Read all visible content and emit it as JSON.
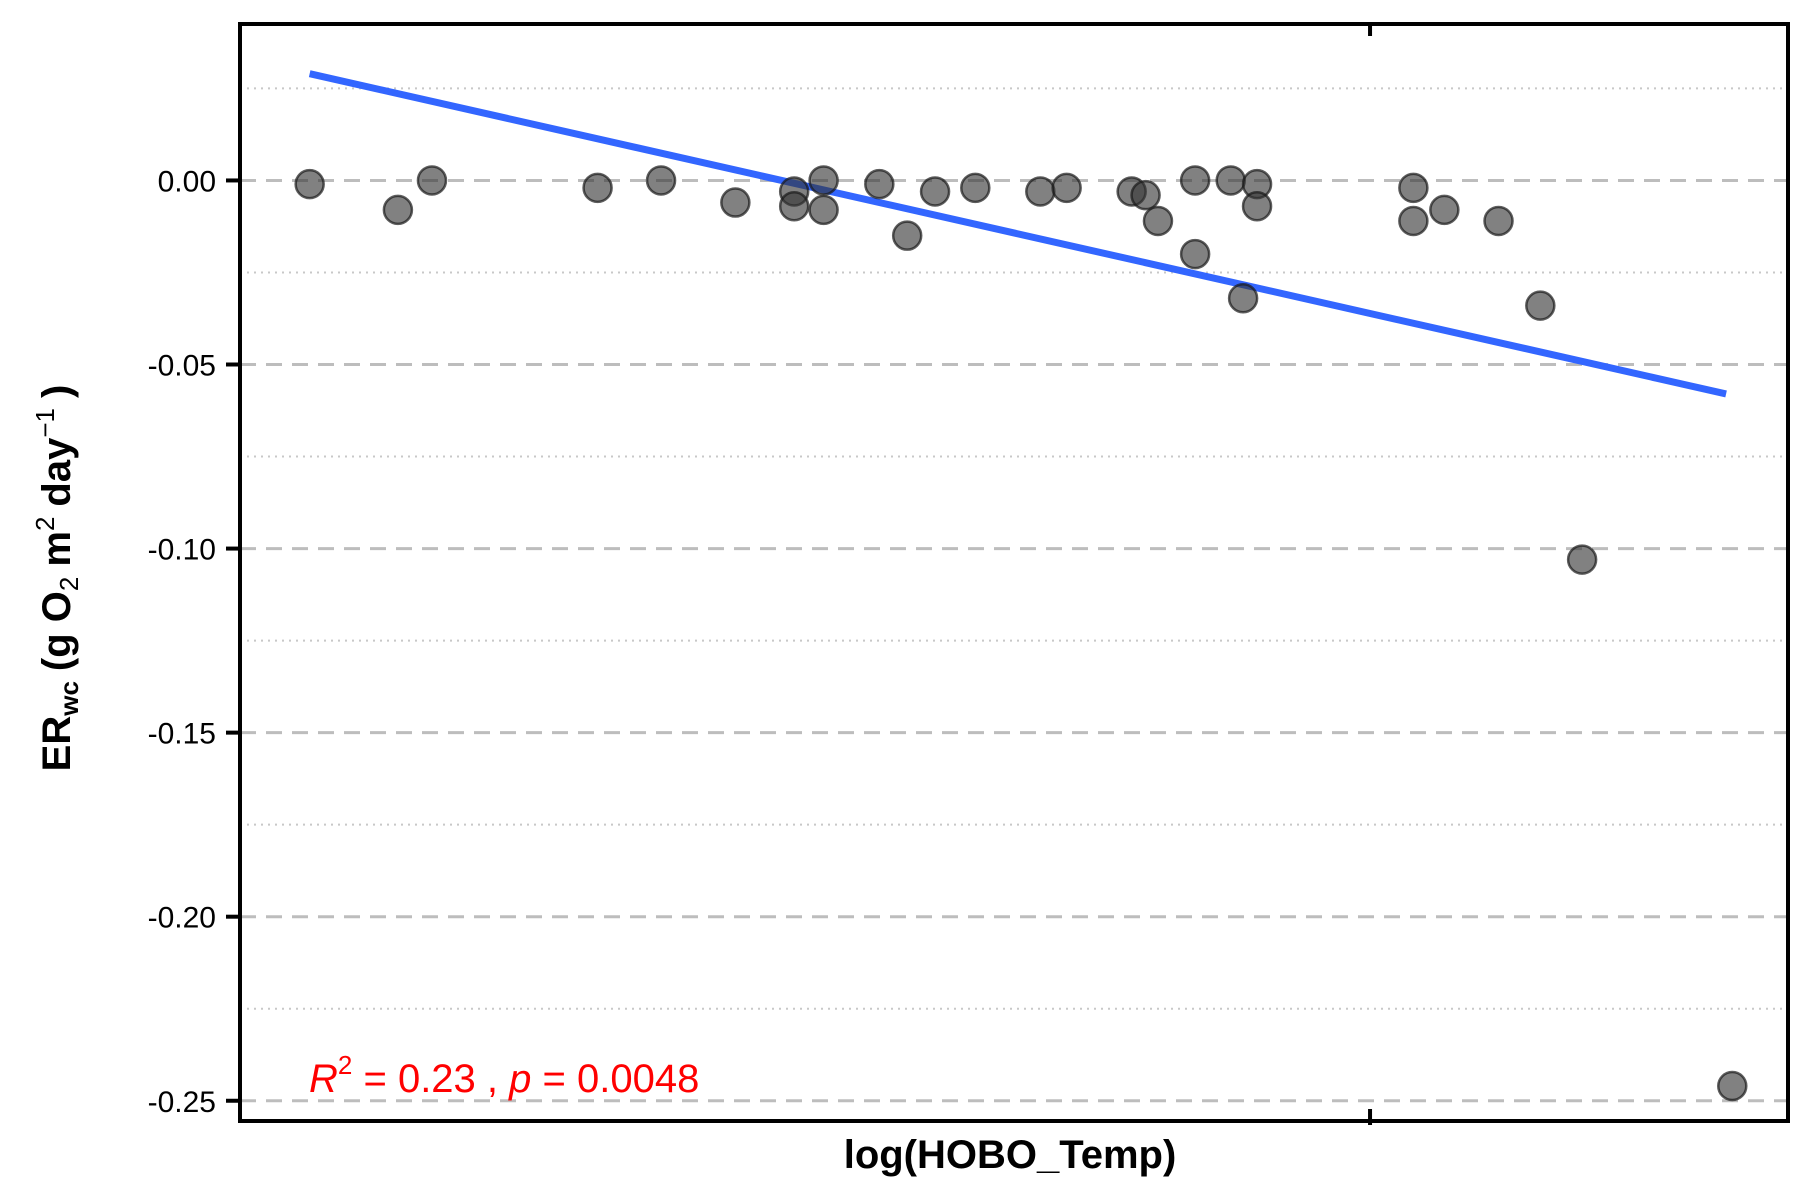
{
  "chart_data": {
    "type": "scatter",
    "xlabel": "log(HOBO_Temp)",
    "ylabel": {
      "main": "ER",
      "sub": "wc",
      "paren_open": "(g O",
      "o2_sub": "2",
      "m": "m",
      "m_sup": "2",
      "day": "day",
      "day_sup": "−1",
      "paren_close": ")"
    },
    "ylim": [
      -0.2555,
      0.0425
    ],
    "xlim": [
      0,
      1
    ],
    "y_ticks": [
      0.0,
      -0.05,
      -0.1,
      -0.15,
      -0.2,
      -0.25
    ],
    "y_tick_labels": [
      "0.00",
      "-0.05",
      "-0.10",
      "-0.15",
      "-0.20",
      "-0.25"
    ],
    "y_minor_grid": [
      0.025,
      -0.025,
      -0.075,
      -0.125,
      -0.175,
      -0.225
    ],
    "x_ticks": [
      0.73
    ],
    "grid": "horizontal dashed major, dotted minor",
    "points": [
      {
        "x": 0.045,
        "y": -0.001
      },
      {
        "x": 0.102,
        "y": -0.008
      },
      {
        "x": 0.124,
        "y": 0.0
      },
      {
        "x": 0.231,
        "y": -0.002
      },
      {
        "x": 0.272,
        "y": 0.0
      },
      {
        "x": 0.32,
        "y": -0.006
      },
      {
        "x": 0.358,
        "y": -0.003
      },
      {
        "x": 0.358,
        "y": -0.007
      },
      {
        "x": 0.377,
        "y": 0.0
      },
      {
        "x": 0.377,
        "y": -0.008
      },
      {
        "x": 0.413,
        "y": -0.001
      },
      {
        "x": 0.431,
        "y": -0.015
      },
      {
        "x": 0.449,
        "y": -0.003
      },
      {
        "x": 0.475,
        "y": -0.002
      },
      {
        "x": 0.517,
        "y": -0.003
      },
      {
        "x": 0.534,
        "y": -0.002
      },
      {
        "x": 0.576,
        "y": -0.003
      },
      {
        "x": 0.585,
        "y": -0.004
      },
      {
        "x": 0.593,
        "y": -0.011
      },
      {
        "x": 0.617,
        "y": 0.0
      },
      {
        "x": 0.617,
        "y": -0.02
      },
      {
        "x": 0.64,
        "y": 0.0
      },
      {
        "x": 0.648,
        "y": -0.032
      },
      {
        "x": 0.657,
        "y": -0.001
      },
      {
        "x": 0.657,
        "y": -0.007
      },
      {
        "x": 0.758,
        "y": -0.002
      },
      {
        "x": 0.758,
        "y": -0.011
      },
      {
        "x": 0.778,
        "y": -0.008
      },
      {
        "x": 0.813,
        "y": -0.011
      },
      {
        "x": 0.84,
        "y": -0.034
      },
      {
        "x": 0.867,
        "y": -0.103
      },
      {
        "x": 0.964,
        "y": -0.246
      }
    ],
    "fit_line": {
      "x": [
        0.045,
        0.96
      ],
      "y": [
        0.029,
        -0.058
      ],
      "color": "#3366ff"
    },
    "point_color": "#333333",
    "stats": {
      "r_label": "R",
      "r_sup": "2",
      "r_value": " = 0.23 , ",
      "p_label": "p",
      "p_value": " = 0.0048",
      "color": "#ff0000"
    }
  }
}
